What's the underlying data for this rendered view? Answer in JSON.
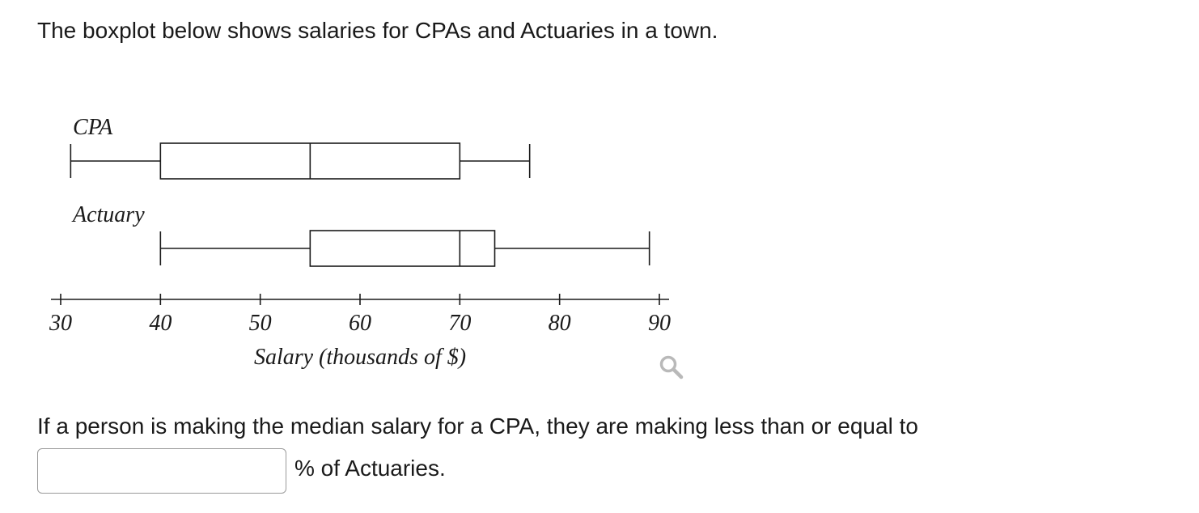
{
  "prompt": {
    "intro": "The boxplot below shows salaries for CPAs and Actuaries in a town.",
    "question": "If a person is making the median salary for a CPA, they are making less than or equal to",
    "answer_value": "",
    "answer_suffix": "% of Actuaries."
  },
  "icons": {
    "zoom": "magnifier-icon"
  },
  "chart_data": {
    "type": "boxplot",
    "title": "",
    "xlabel": "Salary (thousands of $)",
    "ylabel": "",
    "xlim": [
      30,
      90
    ],
    "xticks": [
      30,
      40,
      50,
      60,
      70,
      80,
      90
    ],
    "grid": false,
    "legend": "none",
    "series": [
      {
        "name": "CPA",
        "min": 31,
        "q1": 40,
        "median": 55,
        "q3": 70,
        "max": 77
      },
      {
        "name": "Actuary",
        "min": 40,
        "q1": 55,
        "median": 70,
        "q3": 73.5,
        "max": 89
      }
    ]
  }
}
